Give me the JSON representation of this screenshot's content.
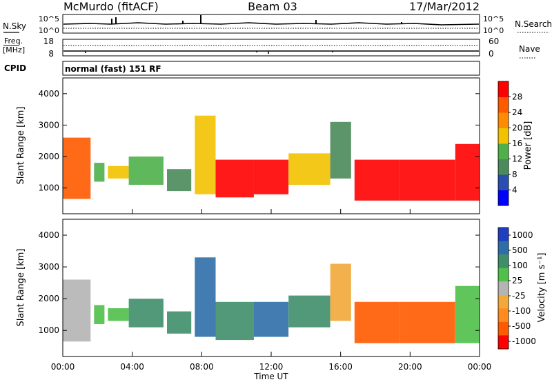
{
  "header": {
    "station": "McMurdo (fitACF)",
    "beam": "Beam 03",
    "date": "17/Mar/2012"
  },
  "top_panels": {
    "nsky_label": "N.Sky",
    "nsky_ticks": [
      "10^5",
      "10^0"
    ],
    "nsearch_label": "N.Search",
    "nsearch_ticks": [
      "10^5",
      "10^0"
    ],
    "freq_label_1": "Freq.",
    "freq_label_2": "[MHz]",
    "freq_ticks": [
      "18",
      "8"
    ],
    "nave_label": "Nave",
    "nave_ticks": [
      "60",
      "0"
    ],
    "cpid_label": "CPID",
    "cpid_text": "normal (fast) 151 RF"
  },
  "colors": {
    "power_scale": [
      "#0000ff",
      "#2a4db0",
      "#4b8a5a",
      "#4fb04a",
      "#f2c200",
      "#ff8c00",
      "#ff5a00",
      "#ff0000"
    ],
    "velocity_scale": [
      "#1f3fc0",
      "#2d6ea8",
      "#3f8e6a",
      "#4fc04a",
      "#b4b4b4",
      "#f2a93a",
      "#ff8a1e",
      "#ff5a00",
      "#ff0000"
    ]
  },
  "chart_data": [
    {
      "type": "heatmap",
      "title": "Power",
      "xlabel": "Time UT",
      "ylabel": "Slant Range [km]",
      "x_ticks": [
        "00:00",
        "04:00",
        "08:00",
        "12:00",
        "16:00",
        "20:00",
        "00:00"
      ],
      "xlim_hours": [
        0,
        24
      ],
      "y_ticks": [
        1000,
        2000,
        3000,
        4000
      ],
      "ylim_km": [
        180,
        4500
      ],
      "colorbar": {
        "label": "Power [dB]",
        "ticks": [
          "4",
          "8",
          "12",
          "16",
          "20",
          "24",
          "28"
        ],
        "range": [
          0,
          32
        ]
      },
      "regions": [
        {
          "t0": 0.0,
          "t1": 1.6,
          "r0": 650,
          "r1": 2600,
          "level": 6
        },
        {
          "t0": 1.8,
          "t1": 2.4,
          "r0": 1200,
          "r1": 1800,
          "level": 3
        },
        {
          "t0": 2.6,
          "t1": 3.8,
          "r0": 1300,
          "r1": 1700,
          "level": 4
        },
        {
          "t0": 3.8,
          "t1": 5.8,
          "r0": 1100,
          "r1": 2000,
          "level": 3
        },
        {
          "t0": 6.0,
          "t1": 7.4,
          "r0": 900,
          "r1": 1600,
          "level": 2
        },
        {
          "t0": 7.6,
          "t1": 8.8,
          "r0": 800,
          "r1": 3300,
          "level": 4
        },
        {
          "t0": 8.8,
          "t1": 11.0,
          "r0": 700,
          "r1": 1900,
          "level": 7
        },
        {
          "t0": 11.0,
          "t1": 13.0,
          "r0": 800,
          "r1": 1900,
          "level": 7
        },
        {
          "t0": 13.0,
          "t1": 15.4,
          "r0": 1100,
          "r1": 2100,
          "level": 4
        },
        {
          "t0": 15.4,
          "t1": 16.6,
          "r0": 1300,
          "r1": 3100,
          "level": 2
        },
        {
          "t0": 16.8,
          "t1": 19.4,
          "r0": 600,
          "r1": 1900,
          "level": 7
        },
        {
          "t0": 19.4,
          "t1": 22.6,
          "r0": 600,
          "r1": 1900,
          "level": 7
        },
        {
          "t0": 22.6,
          "t1": 24.0,
          "r0": 600,
          "r1": 2400,
          "level": 7
        }
      ]
    },
    {
      "type": "heatmap",
      "title": "Velocity",
      "xlabel": "Time UT",
      "ylabel": "Slant Range [km]",
      "x_ticks": [
        "00:00",
        "04:00",
        "08:00",
        "12:00",
        "16:00",
        "20:00",
        "00:00"
      ],
      "xlim_hours": [
        0,
        24
      ],
      "y_ticks": [
        1000,
        2000,
        3000,
        4000
      ],
      "ylim_km": [
        180,
        4500
      ],
      "colorbar": {
        "label": "Velocity [m s⁻¹]",
        "ticks": [
          "1000",
          "500",
          "100",
          "25",
          "-25",
          "-100",
          "-500",
          "-1000"
        ],
        "range": [
          1000,
          -1000
        ]
      },
      "regions": [
        {
          "t0": 0.0,
          "t1": 1.6,
          "r0": 650,
          "r1": 2600,
          "level": 4
        },
        {
          "t0": 1.8,
          "t1": 2.4,
          "r0": 1200,
          "r1": 1800,
          "level": 3
        },
        {
          "t0": 2.6,
          "t1": 3.8,
          "r0": 1300,
          "r1": 1700,
          "level": 3
        },
        {
          "t0": 3.8,
          "t1": 5.8,
          "r0": 1100,
          "r1": 2000,
          "level": 2
        },
        {
          "t0": 6.0,
          "t1": 7.4,
          "r0": 900,
          "r1": 1600,
          "level": 2
        },
        {
          "t0": 7.6,
          "t1": 8.8,
          "r0": 800,
          "r1": 3300,
          "level": 1
        },
        {
          "t0": 8.8,
          "t1": 11.0,
          "r0": 700,
          "r1": 1900,
          "level": 2
        },
        {
          "t0": 11.0,
          "t1": 13.0,
          "r0": 800,
          "r1": 1900,
          "level": 1
        },
        {
          "t0": 13.0,
          "t1": 15.4,
          "r0": 1100,
          "r1": 2100,
          "level": 2
        },
        {
          "t0": 15.4,
          "t1": 16.6,
          "r0": 1300,
          "r1": 3100,
          "level": 5
        },
        {
          "t0": 16.8,
          "t1": 19.4,
          "r0": 600,
          "r1": 1900,
          "level": 7
        },
        {
          "t0": 19.4,
          "t1": 22.6,
          "r0": 600,
          "r1": 1900,
          "level": 7
        },
        {
          "t0": 22.6,
          "t1": 24.0,
          "r0": 600,
          "r1": 2400,
          "level": 3
        }
      ]
    }
  ]
}
